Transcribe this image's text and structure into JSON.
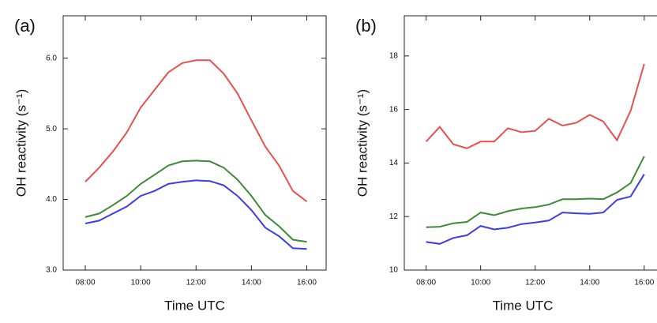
{
  "chart_data": [
    {
      "type": "line",
      "panel_label": "(a)",
      "x_label": "Time UTC",
      "y_label": "OH reactivity (s⁻¹)",
      "x": [
        8,
        8.5,
        9,
        9.5,
        10,
        10.5,
        11,
        11.5,
        12,
        12.5,
        13,
        13.5,
        14,
        14.5,
        15,
        15.5,
        16
      ],
      "xlim": [
        7.2,
        16.7
      ],
      "xticks": [
        {
          "value": 8,
          "label": "08:00"
        },
        {
          "value": 10,
          "label": "10:00"
        },
        {
          "value": 12,
          "label": "12:00"
        },
        {
          "value": 14,
          "label": "14:00"
        },
        {
          "value": 16,
          "label": "16:00"
        }
      ],
      "ylim": [
        3.0,
        6.6
      ],
      "yticks": [
        {
          "value": 3,
          "label": "3.0"
        },
        {
          "value": 4,
          "label": "4.0"
        },
        {
          "value": 5,
          "label": "5.0"
        },
        {
          "value": 6,
          "label": "6.0"
        }
      ],
      "series": [
        {
          "color": "#e8504f",
          "values": [
            4.25,
            4.45,
            4.68,
            4.95,
            5.3,
            5.55,
            5.8,
            5.93,
            5.97,
            5.97,
            5.78,
            5.5,
            5.12,
            4.75,
            4.48,
            4.12,
            3.97
          ]
        },
        {
          "color": "#3f8a3a",
          "values": [
            3.75,
            3.8,
            3.92,
            4.05,
            4.22,
            4.35,
            4.48,
            4.54,
            4.55,
            4.54,
            4.45,
            4.28,
            4.05,
            3.78,
            3.62,
            3.43,
            3.4
          ]
        },
        {
          "color": "#3c3ce8",
          "values": [
            3.66,
            3.7,
            3.8,
            3.9,
            4.05,
            4.12,
            4.22,
            4.25,
            4.27,
            4.26,
            4.2,
            4.05,
            3.85,
            3.6,
            3.48,
            3.31,
            3.3
          ]
        }
      ]
    },
    {
      "type": "line",
      "panel_label": "(b)",
      "x_label": "Time UTC",
      "y_label": "OH reactivity (s⁻¹)",
      "x": [
        8,
        8.5,
        9,
        9.5,
        10,
        10.5,
        11,
        11.5,
        12,
        12.5,
        13,
        13.5,
        14,
        14.5,
        15,
        15.5,
        16
      ],
      "xlim": [
        7.2,
        16.7
      ],
      "xticks": [
        {
          "value": 8,
          "label": "08:00"
        },
        {
          "value": 10,
          "label": "10:00"
        },
        {
          "value": 12,
          "label": "12:00"
        },
        {
          "value": 14,
          "label": "14:00"
        },
        {
          "value": 16,
          "label": "16:00"
        }
      ],
      "ylim": [
        10,
        19.5
      ],
      "yticks": [
        10,
        12,
        14,
        16,
        18
      ],
      "series": [
        {
          "color": "#e8504f",
          "values": [
            14.8,
            15.35,
            14.7,
            14.55,
            14.8,
            14.8,
            15.3,
            15.15,
            15.2,
            15.65,
            15.4,
            15.5,
            15.8,
            15.55,
            14.85,
            15.95,
            17.7
          ]
        },
        {
          "color": "#3f8a3a",
          "values": [
            11.6,
            11.62,
            11.75,
            11.8,
            12.15,
            12.05,
            12.2,
            12.3,
            12.35,
            12.45,
            12.65,
            12.65,
            12.67,
            12.65,
            12.9,
            13.25,
            14.25
          ]
        },
        {
          "color": "#3c3ce8",
          "values": [
            11.05,
            10.98,
            11.2,
            11.3,
            11.65,
            11.52,
            11.58,
            11.72,
            11.78,
            11.85,
            12.15,
            12.12,
            12.1,
            12.15,
            12.62,
            12.75,
            13.58
          ]
        }
      ]
    }
  ]
}
